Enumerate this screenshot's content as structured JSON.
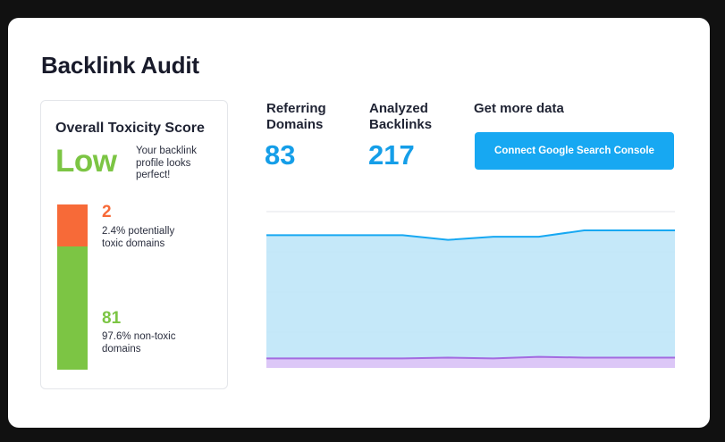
{
  "page": {
    "title": "Backlink Audit"
  },
  "toxicity": {
    "title": "Overall Toxicity Score",
    "level": "Low",
    "description": "Your backlink profile looks perfect!",
    "toxic": {
      "count": "2",
      "label": "2.4% potentially toxic domains",
      "color": "#f76a38"
    },
    "non_toxic": {
      "count": "81",
      "label": "97.6% non-toxic domains",
      "color": "#7cc544"
    }
  },
  "metrics": {
    "referring_domains": {
      "label": "Referring Domains",
      "value": "83"
    },
    "analyzed_backlinks": {
      "label": "Analyzed Backlinks",
      "value": "217"
    }
  },
  "get_more_data": {
    "label": "Get more data",
    "button": "Connect Google Search Console"
  },
  "colors": {
    "accent": "#17a8f2",
    "metric_value": "#159ee8",
    "low": "#7cc544",
    "toxic": "#f76a38"
  },
  "chart_data": {
    "type": "area",
    "x": [
      0,
      1,
      2,
      3,
      4,
      5,
      6,
      7,
      8,
      9
    ],
    "series": [
      {
        "values": [
          84,
          84,
          84,
          84,
          81,
          83,
          83,
          87,
          87,
          87
        ],
        "color": "#17a8f2",
        "fill": "#bfe5f8"
      },
      {
        "values": [
          6,
          6,
          6,
          6,
          6.5,
          6,
          7,
          6.5,
          6.5,
          6.5
        ],
        "color": "#a36be0",
        "fill": "#dcc7f7"
      }
    ],
    "ylim": [
      0,
      100
    ],
    "grid": true,
    "legend": "none"
  }
}
